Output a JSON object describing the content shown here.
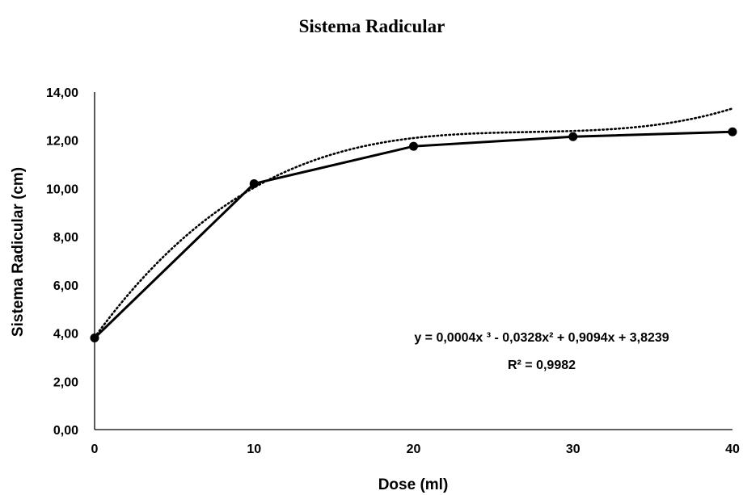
{
  "chart_data": {
    "type": "line",
    "title": "Sistema Radicular",
    "xlabel": "Dose (ml)",
    "ylabel": "Sistema Radicular (cm)",
    "x": [
      0,
      10,
      20,
      30,
      40
    ],
    "x_tick_labels": [
      "0",
      "10",
      "20",
      "30",
      "40"
    ],
    "xlim": [
      0,
      40
    ],
    "ylim": [
      0,
      14
    ],
    "y_ticks": [
      0,
      2,
      4,
      6,
      8,
      10,
      12,
      14
    ],
    "y_tick_labels": [
      "0,00",
      "2,00",
      "4,00",
      "6,00",
      "8,00",
      "10,00",
      "12,00",
      "14,00"
    ],
    "series": [
      {
        "values": [
          3.8,
          10.2,
          11.75,
          12.15,
          12.35
        ],
        "color": "#000000",
        "style": "solid",
        "markers": true
      }
    ],
    "trendline": {
      "type": "polynomial",
      "order": 3,
      "coefficients": [
        0.0004,
        -0.0328,
        0.9094,
        3.8239
      ],
      "style": "dotted",
      "color": "#000000",
      "equation": "y = 0,0004x ³ - 0,0328x² + 0,9094x + 3,8239",
      "r_squared": "R² = 0,9982"
    },
    "grid": false,
    "legend": "none"
  }
}
